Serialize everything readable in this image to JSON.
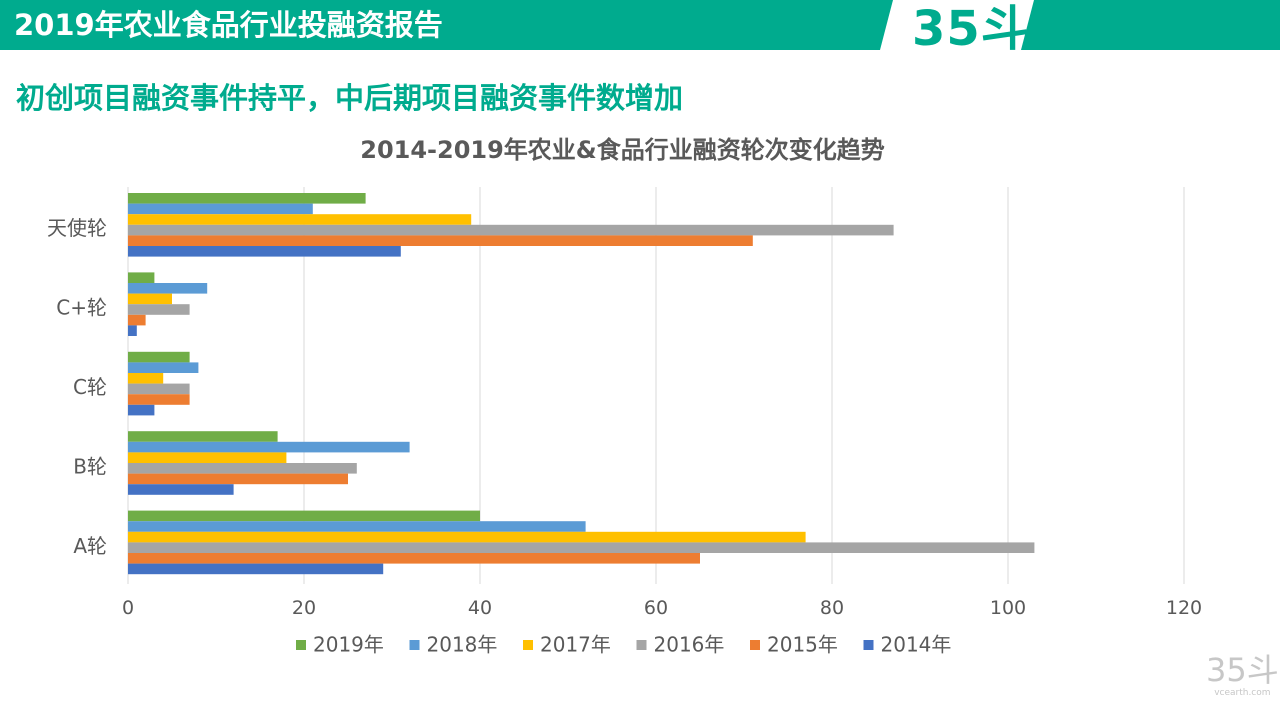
{
  "colors": {
    "brand": "#00AB8E",
    "white": "#FFFFFF",
    "grid": "#D9D9D9",
    "axis_text": "#595959"
  },
  "header": {
    "title": "2019年农业食品行业投融资报告",
    "logo": "35斗"
  },
  "subtitle": "初创项目融资事件持平，中后期项目融资事件数增加",
  "watermark": {
    "logo": "35斗",
    "url": "vcearth.com"
  },
  "chart_data": {
    "type": "bar",
    "orientation": "horizontal",
    "title": "2014-2019年农业&食品行业融资轮次变化趋势",
    "categories": [
      "天使轮",
      "C+轮",
      "C轮",
      "B轮",
      "A轮"
    ],
    "series": [
      {
        "name": "2019年",
        "color": "#70AD47",
        "values": [
          27,
          3,
          7,
          17,
          40
        ]
      },
      {
        "name": "2018年",
        "color": "#5B9BD5",
        "values": [
          21,
          9,
          8,
          32,
          52
        ]
      },
      {
        "name": "2017年",
        "color": "#FFC000",
        "values": [
          39,
          5,
          4,
          18,
          77
        ]
      },
      {
        "name": "2016年",
        "color": "#A5A5A5",
        "values": [
          87,
          7,
          7,
          26,
          103
        ]
      },
      {
        "name": "2015年",
        "color": "#ED7D31",
        "values": [
          71,
          2,
          7,
          25,
          65
        ]
      },
      {
        "name": "2014年",
        "color": "#4472C4",
        "values": [
          31,
          1,
          3,
          12,
          29
        ]
      }
    ],
    "x_ticks": [
      "0",
      "20",
      "40",
      "60",
      "80",
      "100",
      "120"
    ],
    "xlim": [
      0,
      130
    ],
    "grid": true,
    "legend_position": "bottom"
  }
}
